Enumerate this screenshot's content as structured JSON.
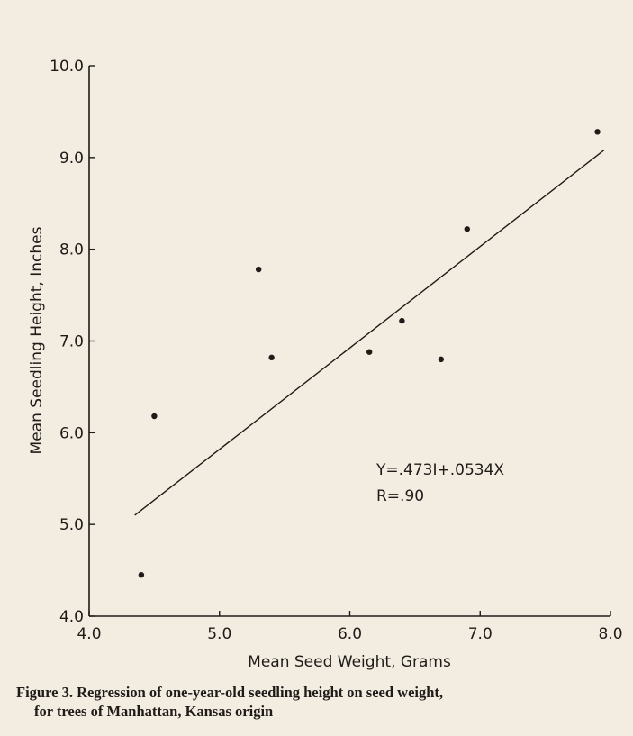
{
  "chart_data": {
    "type": "scatter",
    "xlabel": "Mean Seed Weight, Grams",
    "ylabel": "Mean Seedling Height, Inches",
    "xlim": [
      4.0,
      8.0
    ],
    "ylim": [
      4.0,
      10.0
    ],
    "x_ticks": [
      "4.0",
      "5.0",
      "6.0",
      "7.0",
      "8.0"
    ],
    "y_ticks": [
      "4.0",
      "5.0",
      "6.0",
      "7.0",
      "8.0",
      "9.0",
      "10.0"
    ],
    "points": [
      {
        "x": 4.4,
        "y": 4.45
      },
      {
        "x": 4.5,
        "y": 6.18
      },
      {
        "x": 5.3,
        "y": 7.78
      },
      {
        "x": 5.4,
        "y": 6.82
      },
      {
        "x": 6.15,
        "y": 6.88
      },
      {
        "x": 6.4,
        "y": 7.22
      },
      {
        "x": 6.7,
        "y": 6.8
      },
      {
        "x": 6.9,
        "y": 8.22
      },
      {
        "x": 7.9,
        "y": 9.28
      }
    ],
    "regression_line": {
      "x": [
        4.35,
        7.95
      ],
      "y": [
        5.1,
        9.08
      ]
    },
    "annotations": [
      "Y=.473I+.0534X",
      "R=.90"
    ],
    "grid": false
  },
  "caption": {
    "line1": "Figure 3. Regression of one-year-old seedling height on seed weight,",
    "line2": "for trees of Manhattan, Kansas origin"
  }
}
